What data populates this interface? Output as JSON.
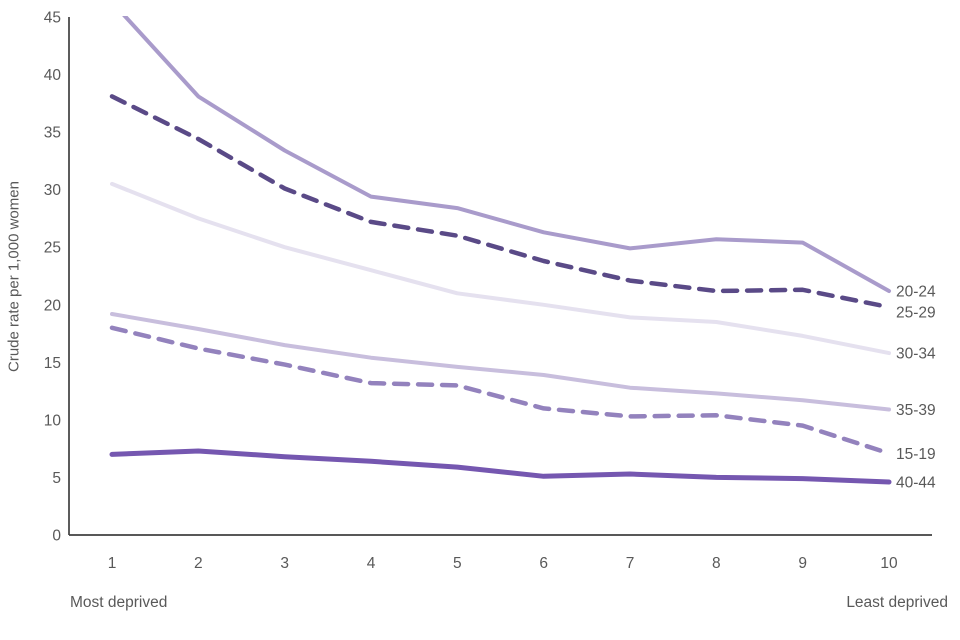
{
  "chart_data": {
    "type": "line",
    "x": [
      1,
      2,
      3,
      4,
      5,
      6,
      7,
      8,
      9,
      10
    ],
    "xlabel_left": "Most deprived",
    "xlabel_right": "Least deprived",
    "ylabel": "Crude rate per 1,000 women",
    "ylim": [
      0,
      45
    ],
    "yticks": [
      0,
      5,
      10,
      15,
      20,
      25,
      30,
      35,
      40,
      45
    ],
    "grid": false,
    "legend_position": "right of line ends",
    "series": [
      {
        "name": "20-24",
        "color": "#a99bcb",
        "style": "solid",
        "values": [
          46.3,
          38.1,
          33.4,
          29.4,
          28.4,
          26.3,
          24.9,
          25.7,
          25.4,
          21.2
        ]
      },
      {
        "name": "25-29",
        "color": "#5a4a87",
        "style": "dashed",
        "values": [
          38.1,
          34.4,
          30.1,
          27.2,
          26.0,
          23.8,
          22.1,
          21.2,
          21.3,
          19.8
        ]
      },
      {
        "name": "30-34",
        "color": "#e5e1ef",
        "style": "solid",
        "values": [
          30.5,
          27.5,
          25.0,
          23.0,
          21.0,
          20.0,
          18.9,
          18.5,
          17.3,
          15.8
        ]
      },
      {
        "name": "35-39",
        "color": "#c8bedd",
        "style": "solid",
        "values": [
          19.2,
          17.9,
          16.5,
          15.4,
          14.6,
          13.9,
          12.8,
          12.3,
          11.7,
          10.9
        ]
      },
      {
        "name": "15-19",
        "color": "#9382bd",
        "style": "dashed",
        "values": [
          18.0,
          16.2,
          14.8,
          13.2,
          13.0,
          11.0,
          10.3,
          10.4,
          9.5,
          7.1
        ]
      },
      {
        "name": "40-44",
        "color": "#7557b0",
        "style": "solid",
        "values": [
          7.0,
          7.3,
          6.8,
          6.4,
          5.9,
          5.1,
          5.3,
          5.0,
          4.9,
          4.6
        ]
      }
    ]
  },
  "colors": {
    "text": "#595959",
    "axis": "#404040",
    "background": "#ffffff"
  }
}
